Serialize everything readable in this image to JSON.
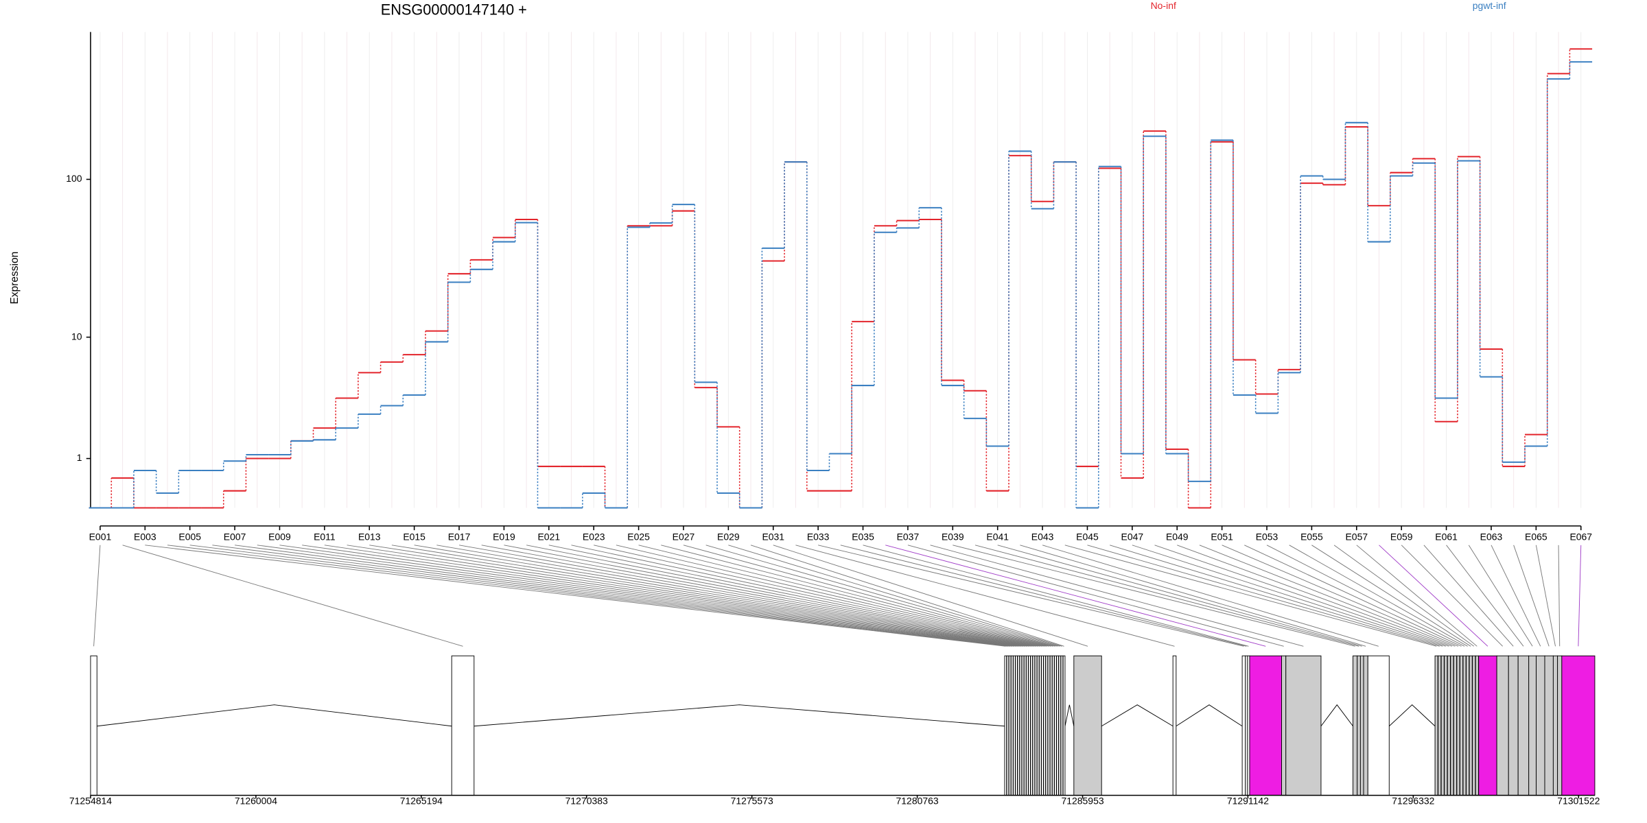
{
  "chart_data": [
    {
      "type": "step",
      "title": "ENSG00000147140 +",
      "y_label": "Expression",
      "log_scale": true,
      "grid": true,
      "categories": [
        "E001",
        null,
        "E003",
        null,
        "E005",
        null,
        "E007",
        null,
        "E009",
        null,
        "E011",
        null,
        "E013",
        null,
        "E015",
        null,
        "E017",
        null,
        "E019",
        null,
        "E021",
        null,
        "E023",
        null,
        "E025",
        null,
        "E027",
        null,
        "E029",
        null,
        "E031",
        null,
        "E033",
        null,
        "E035",
        null,
        "E037",
        null,
        "E039",
        null,
        "E041",
        null,
        "E043",
        null,
        "E045",
        null,
        "E047",
        null,
        "E049",
        null,
        "E051",
        null,
        "E053",
        null,
        "E055",
        null,
        "E057",
        null,
        "E059",
        null,
        "E061",
        null,
        "E063",
        null,
        "E065",
        null,
        "E067"
      ],
      "ylim": [
        0,
        800
      ],
      "yticks": [
        1,
        10,
        100
      ],
      "series": [
        {
          "name": "No-inf",
          "color": "#e3242b",
          "values": [
            0,
            0.52,
            0,
            0,
            0,
            0,
            0.27,
            1.0,
            1.0,
            1.56,
            2.07,
            3.67,
            5.68,
            6.76,
            7.6,
            11,
            25.8,
            31.6,
            43.6,
            56.5,
            0.79,
            0.79,
            0.79,
            0,
            51.6,
            51.6,
            63.8,
            4.42,
            2.12,
            0,
            31.1,
            128,
            0.27,
            0.27,
            12.7,
            51.6,
            55.6,
            56.5,
            5.0,
            4.18,
            0.27,
            140,
            73,
            128,
            0.79,
            117,
            0.52,
            198,
            1.28,
            0,
            170,
            7.0,
            3.95,
            5.98,
            94.7,
            92.6,
            210,
            68.8,
            110,
            134,
            2.36,
            138,
            8.3,
            0.79,
            1.8,
            445,
            630
          ]
        },
        {
          "name": "pgwt-inf",
          "color": "#3a7fc1",
          "values": [
            0,
            0,
            0.69,
            0.23,
            0.69,
            0.69,
            0.93,
            1.11,
            1.11,
            1.56,
            1.6,
            2.07,
            2.73,
            3.2,
            3.88,
            9.3,
            22.8,
            27.5,
            41,
            54,
            0,
            0,
            0.23,
            0,
            50.5,
            53.7,
            70,
            4.84,
            0.23,
            0,
            37.4,
            128,
            0.69,
            1.14,
            4.58,
            47,
            50,
            66.8,
            4.58,
            2.51,
            1.38,
            149,
            65.8,
            128,
            0,
            120,
            1.14,
            184,
            1.14,
            0.45,
            174,
            3.88,
            2.78,
            5.68,
            105,
            100,
            223,
            41,
            105,
            126,
            3.67,
            130,
            5.3,
            0.9,
            1.38,
            413,
            525
          ]
        }
      ]
    },
    {
      "type": "gene_model",
      "xlim": [
        71254814,
        71302031
      ],
      "xticks": [
        71254814,
        71260004,
        71265194,
        71270383,
        71275573,
        71280763,
        71285953,
        71291142,
        71296332,
        71301522
      ],
      "starts": [
        71254814,
        71266150,
        71283506,
        71283574,
        71283642,
        71283710,
        71283778,
        71283846,
        71283914,
        71283982,
        71284050,
        71284118,
        71284186,
        71284254,
        71284322,
        71284390,
        71284458,
        71284526,
        71284594,
        71284662,
        71284730,
        71284798,
        71284866,
        71284934,
        71285002,
        71285070,
        71285138,
        71285206,
        71285274,
        71285342,
        71285679,
        71288789,
        71290963,
        71291063,
        71291130,
        71291197,
        71292200,
        71292334,
        71294440,
        71294574,
        71294674,
        71294774,
        71294908,
        71297015,
        71297113,
        71297211,
        71297309,
        71297407,
        71297505,
        71297603,
        71297701,
        71297799,
        71297897,
        71297995,
        71298093,
        71298191,
        71298289,
        71298386,
        71298955,
        71299323,
        71299624,
        71299958,
        71300192,
        71300460,
        71300727,
        71300861,
        71300995
      ],
      "ends": [
        71255015,
        71266852,
        71283566,
        71283634,
        71283702,
        71283770,
        71283838,
        71283906,
        71283974,
        71284042,
        71284110,
        71284178,
        71284246,
        71284314,
        71284382,
        71284450,
        71284518,
        71284586,
        71284654,
        71284722,
        71284790,
        71284858,
        71284926,
        71284994,
        71285062,
        71285130,
        71285198,
        71285266,
        71285334,
        71285402,
        71286549,
        71288889,
        71291063,
        71291130,
        71291197,
        71292200,
        71292334,
        71293437,
        71294574,
        71294674,
        71294774,
        71294908,
        71295577,
        71297105,
        71297203,
        71297301,
        71297399,
        71297497,
        71297595,
        71297693,
        71297791,
        71297889,
        71297987,
        71298085,
        71298183,
        71298281,
        71298379,
        71298955,
        71299323,
        71299624,
        71299958,
        71300192,
        71300460,
        71300727,
        71300861,
        71300995,
        71302031
      ],
      "colors": [
        "#ffffff",
        "#ffffff",
        "#ffffff",
        "#ffffff",
        "#ffffff",
        "#ffffff",
        "#ffffff",
        "#ffffff",
        "#ffffff",
        "#ffffff",
        "#ffffff",
        "#ffffff",
        "#ffffff",
        "#ffffff",
        "#ffffff",
        "#ffffff",
        "#ffffff",
        "#ffffff",
        "#ffffff",
        "#ffffff",
        "#ffffff",
        "#ffffff",
        "#ffffff",
        "#ffffff",
        "#ffffff",
        "#ffffff",
        "#ffffff",
        "#ffffff",
        "#ffffff",
        "#ffffff",
        "#cccccc",
        "#ffffff",
        "#ffffff",
        "#ffffff",
        "#ffffff",
        "#ee1de3",
        "#cccccc",
        "#cccccc",
        "#cccccc",
        "#cccccc",
        "#cccccc",
        "#cccccc",
        "#ffffff",
        "#cccccc",
        "#cccccc",
        "#cccccc",
        "#cccccc",
        "#cccccc",
        "#cccccc",
        "#cccccc",
        "#cccccc",
        "#cccccc",
        "#cccccc",
        "#cccccc",
        "#cccccc",
        "#cccccc",
        "#cccccc",
        "#ee1de3",
        "#cccccc",
        "#cccccc",
        "#cccccc",
        "#cccccc",
        "#cccccc",
        "#cccccc",
        "#cccccc",
        "#cccccc",
        "#ee1de3"
      ]
    }
  ]
}
